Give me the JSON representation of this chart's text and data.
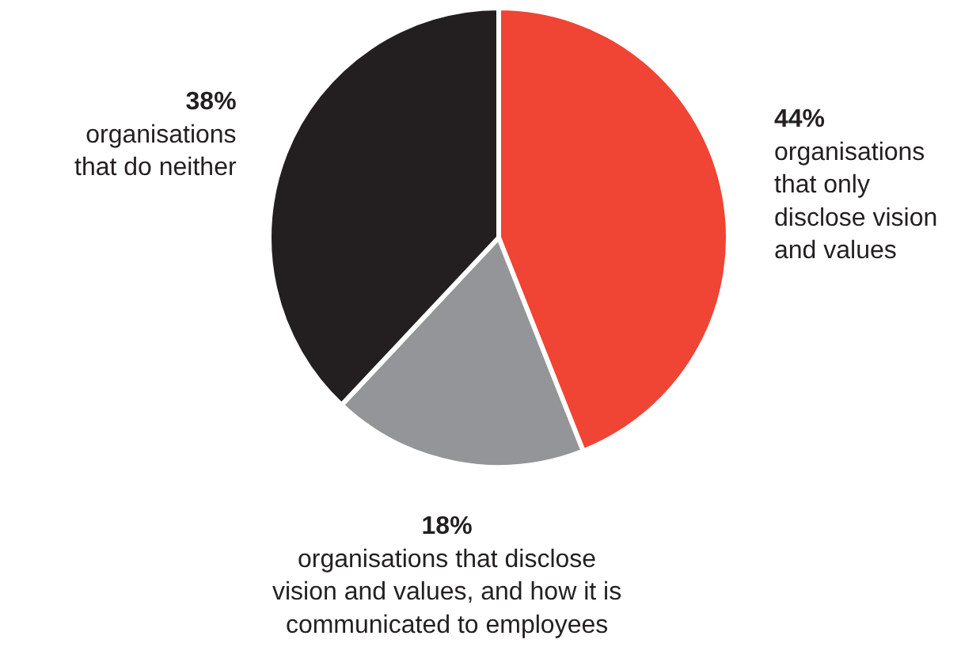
{
  "chart_data": {
    "type": "pie",
    "categories": [
      "organisations that only disclose vision and values",
      "organisations that disclose vision and values, and how it is communicated to employees",
      "organisations that do neither"
    ],
    "values": [
      44,
      18,
      38
    ],
    "value_labels": [
      "44%",
      "18%",
      "38%"
    ],
    "colors": [
      "#f04434",
      "#939598",
      "#231f20"
    ],
    "legend": false
  }
}
